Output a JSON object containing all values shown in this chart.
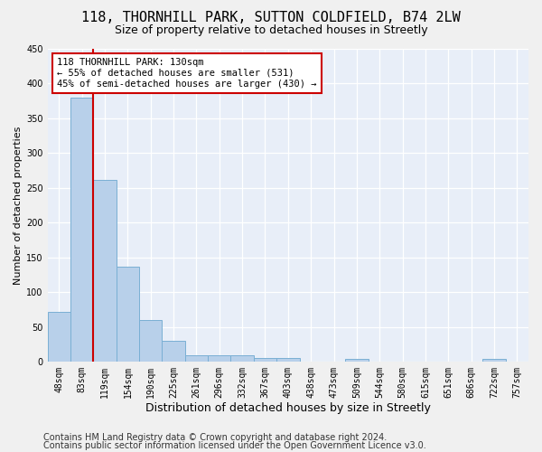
{
  "title_line1": "118, THORNHILL PARK, SUTTON COLDFIELD, B74 2LW",
  "title_line2": "Size of property relative to detached houses in Streetly",
  "xlabel": "Distribution of detached houses by size in Streetly",
  "ylabel": "Number of detached properties",
  "categories": [
    "48sqm",
    "83sqm",
    "119sqm",
    "154sqm",
    "190sqm",
    "225sqm",
    "261sqm",
    "296sqm",
    "332sqm",
    "367sqm",
    "403sqm",
    "438sqm",
    "473sqm",
    "509sqm",
    "544sqm",
    "580sqm",
    "615sqm",
    "651sqm",
    "686sqm",
    "722sqm",
    "757sqm"
  ],
  "values": [
    72,
    380,
    262,
    137,
    60,
    30,
    10,
    9,
    10,
    6,
    5,
    0,
    0,
    4,
    0,
    0,
    0,
    0,
    0,
    4,
    0
  ],
  "bar_color": "#b8d0ea",
  "bar_edge_color": "#7aafd4",
  "vline_color": "#cc0000",
  "vline_index": 2,
  "annotation_text": "118 THORNHILL PARK: 130sqm\n← 55% of detached houses are smaller (531)\n45% of semi-detached houses are larger (430) →",
  "annotation_box_color": "#ffffff",
  "annotation_box_edge": "#cc0000",
  "ylim": [
    0,
    450
  ],
  "yticks": [
    0,
    50,
    100,
    150,
    200,
    250,
    300,
    350,
    400,
    450
  ],
  "plot_bg_color": "#e8eef8",
  "fig_bg_color": "#f0f0f0",
  "grid_color": "#ffffff",
  "footer_line1": "Contains HM Land Registry data © Crown copyright and database right 2024.",
  "footer_line2": "Contains public sector information licensed under the Open Government Licence v3.0.",
  "title_fontsize": 11,
  "subtitle_fontsize": 9,
  "tick_fontsize": 7,
  "xlabel_fontsize": 9,
  "ylabel_fontsize": 8,
  "annotation_fontsize": 7.5,
  "footer_fontsize": 7
}
